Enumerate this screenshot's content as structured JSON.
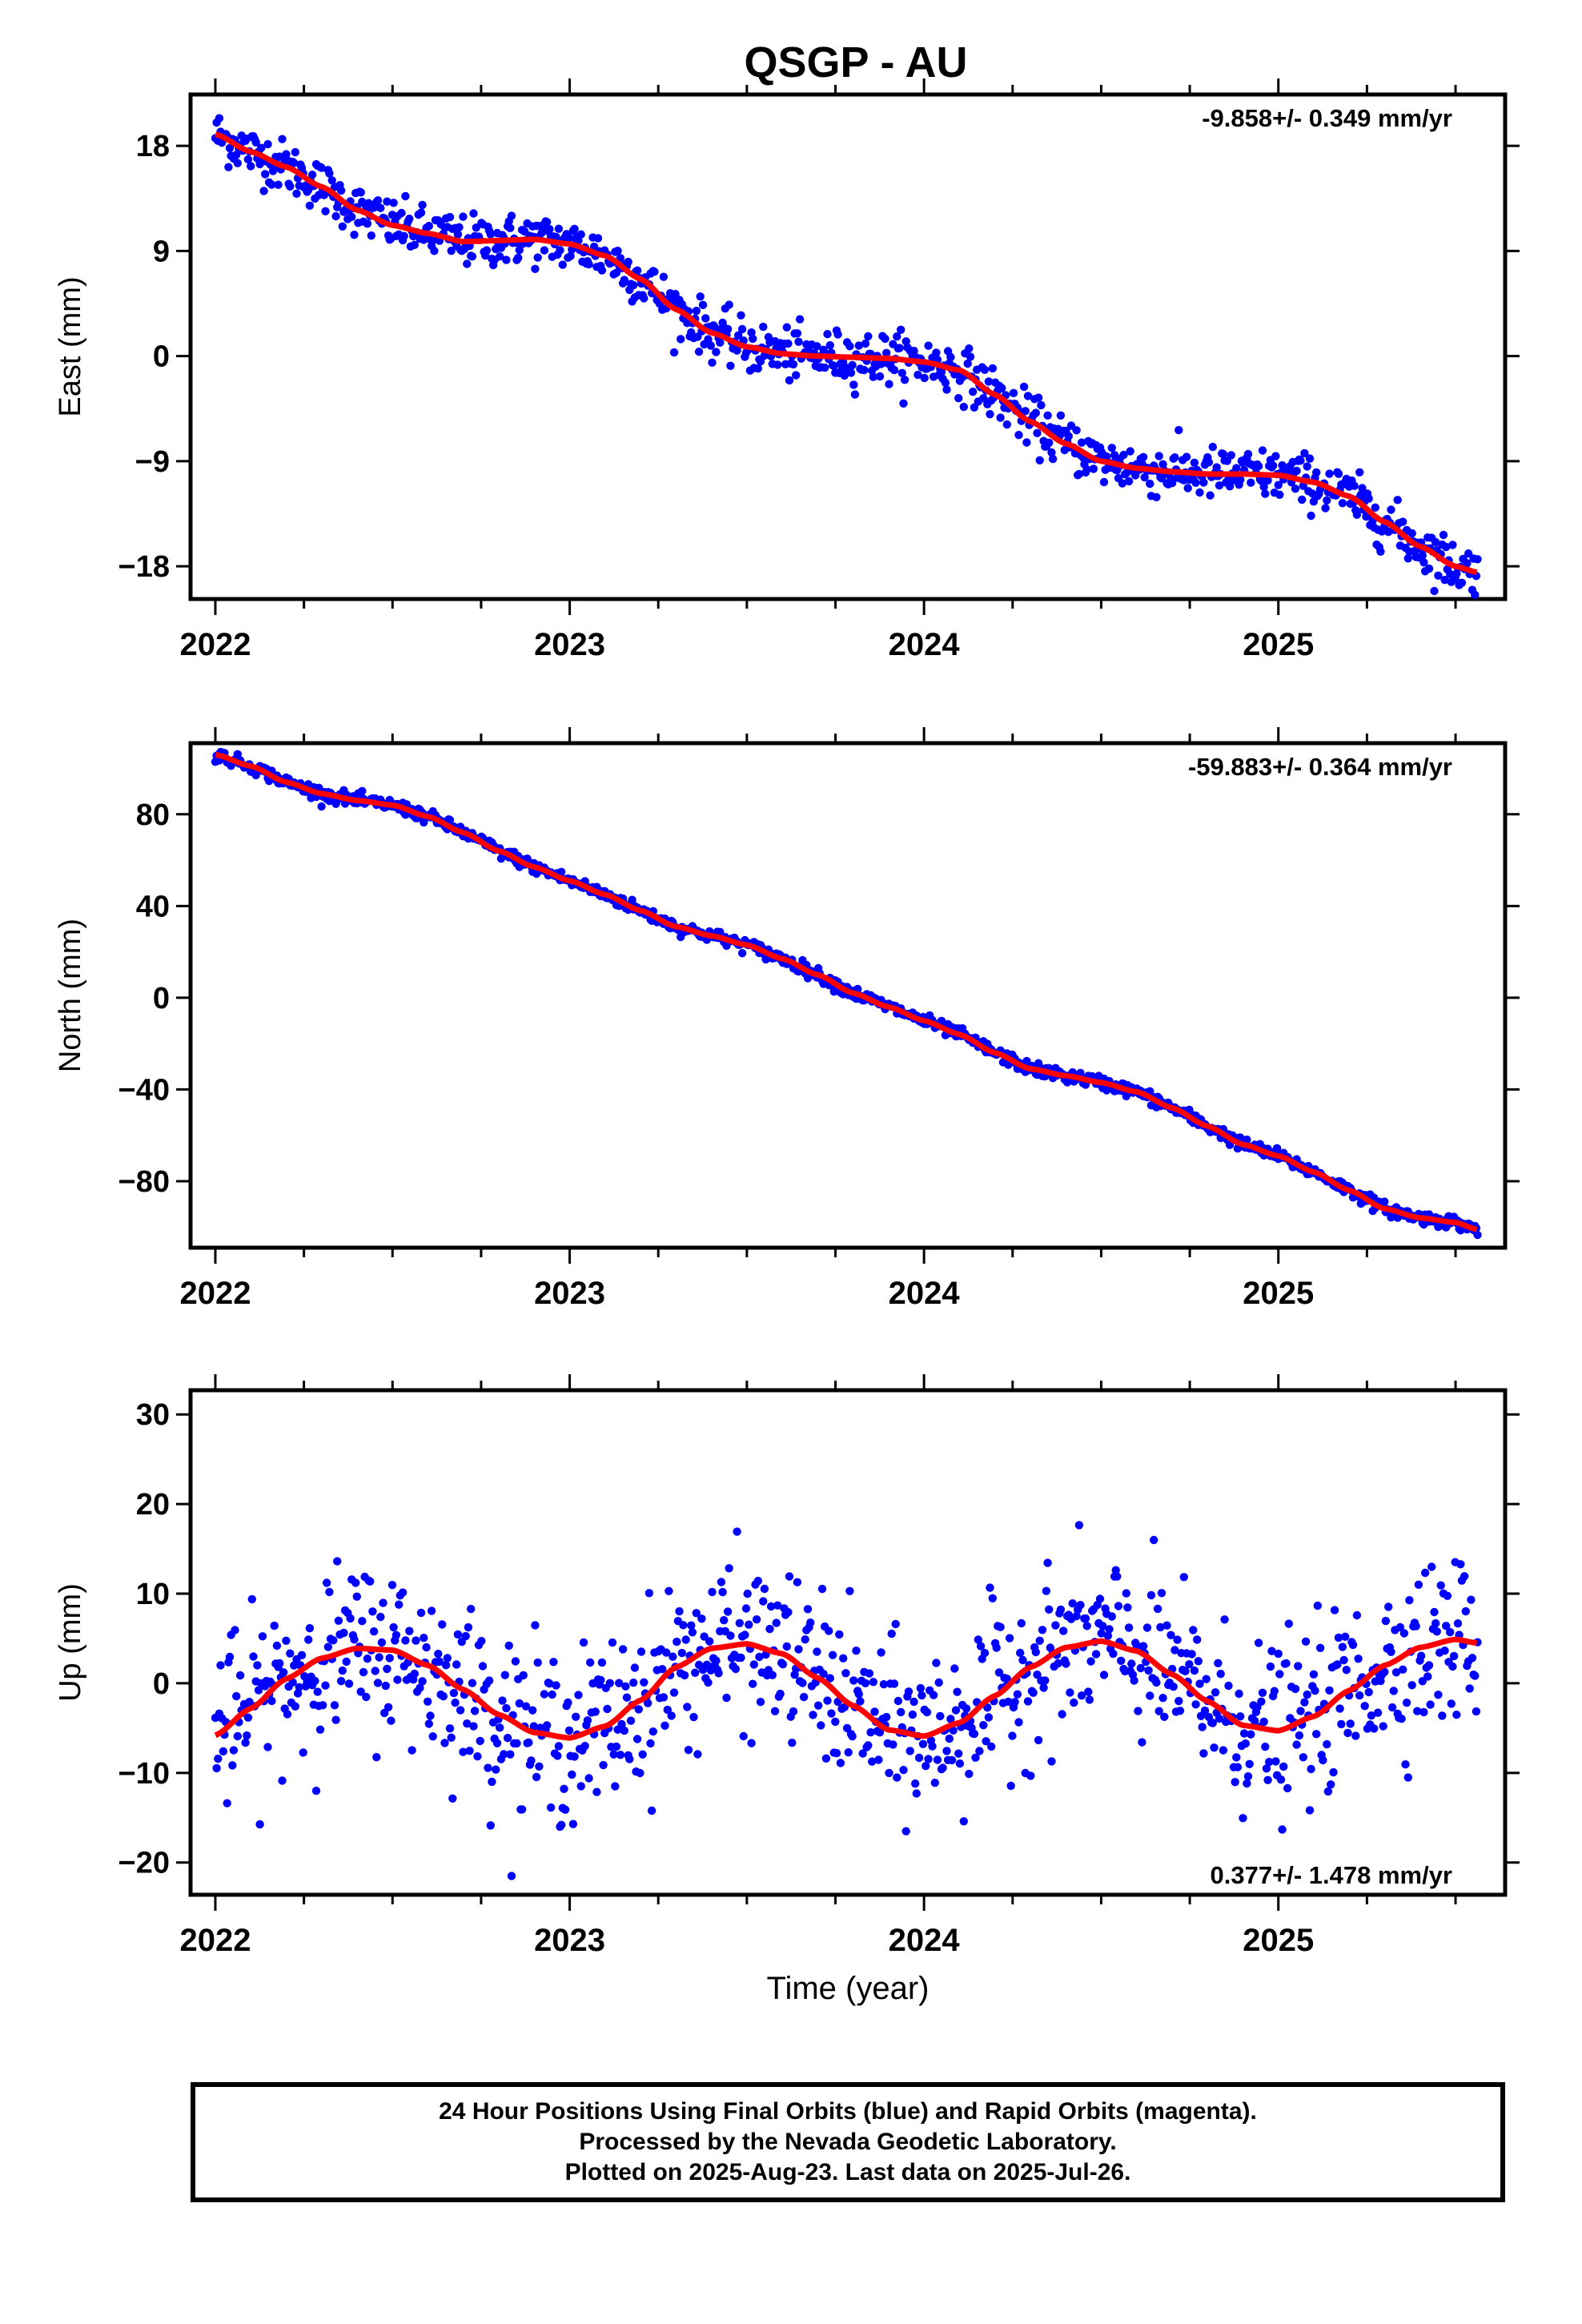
{
  "chart_data": [
    {
      "type": "scatter",
      "title": "QSGP - AU",
      "ylabel": "East (mm)",
      "xlabel": "",
      "xlim": [
        2021.93,
        2025.64
      ],
      "ylim": [
        -20.8,
        22.4
      ],
      "yticks": [
        18,
        9,
        0,
        -9,
        -18
      ],
      "xticks": [
        2022,
        2023,
        2024,
        2025
      ],
      "rate_text": "-9.858+/- 0.349 mm/yr",
      "rate_position": "top-right",
      "series": [
        {
          "color": "#0000ff",
          "style": "points",
          "x": [
            2022.0,
            2022.1,
            2022.2,
            2022.3,
            2022.4,
            2022.5,
            2022.6,
            2022.7,
            2022.8,
            2022.9,
            2023.0,
            2023.1,
            2023.2,
            2023.3,
            2023.4,
            2023.5,
            2023.6,
            2023.7,
            2023.8,
            2023.9,
            2024.0,
            2024.1,
            2024.2,
            2024.3,
            2024.4,
            2024.5,
            2024.6,
            2024.7,
            2024.8,
            2024.9,
            2025.0,
            2025.1,
            2025.2,
            2025.3,
            2025.4,
            2025.5,
            2025.56
          ],
          "y": [
            19.0,
            17.5,
            16.2,
            14.5,
            12.5,
            11.2,
            10.5,
            9.8,
            9.9,
            10.0,
            9.6,
            8.6,
            6.6,
            4.0,
            2.0,
            0.8,
            0.2,
            0.0,
            -0.1,
            -0.2,
            -0.5,
            -1.2,
            -3.3,
            -5.6,
            -7.5,
            -9.0,
            -9.6,
            -9.9,
            -10.1,
            -10.1,
            -10.2,
            -10.8,
            -12.0,
            -14.2,
            -16.3,
            -18.0,
            -18.5
          ]
        },
        {
          "color": "#ff0000",
          "style": "line",
          "x": [
            2022.0,
            2022.1,
            2022.2,
            2022.3,
            2022.4,
            2022.5,
            2022.6,
            2022.7,
            2022.8,
            2022.9,
            2023.0,
            2023.1,
            2023.2,
            2023.3,
            2023.4,
            2023.5,
            2023.6,
            2023.7,
            2023.8,
            2023.9,
            2024.0,
            2024.1,
            2024.2,
            2024.3,
            2024.4,
            2024.5,
            2024.6,
            2024.7,
            2024.8,
            2024.9,
            2025.0,
            2025.1,
            2025.2,
            2025.3,
            2025.4,
            2025.5,
            2025.56
          ],
          "y": [
            19.0,
            17.5,
            16.2,
            14.5,
            12.5,
            11.2,
            10.5,
            9.8,
            9.9,
            10.0,
            9.6,
            8.6,
            6.6,
            4.0,
            2.0,
            0.8,
            0.2,
            0.0,
            -0.1,
            -0.2,
            -0.5,
            -1.2,
            -3.3,
            -5.6,
            -7.5,
            -9.0,
            -9.6,
            -9.9,
            -10.1,
            -10.1,
            -10.2,
            -10.8,
            -12.0,
            -14.2,
            -16.3,
            -18.0,
            -18.5
          ]
        }
      ]
    },
    {
      "type": "scatter",
      "title": "",
      "ylabel": "North (mm)",
      "xlabel": "",
      "xlim": [
        2021.93,
        2025.64
      ],
      "ylim": [
        -109,
        111
      ],
      "yticks": [
        80,
        40,
        0,
        -40,
        -80
      ],
      "xticks": [
        2022,
        2023,
        2024,
        2025
      ],
      "rate_text": "-59.883+/- 0.364 mm/yr",
      "rate_position": "top-right",
      "series": [
        {
          "color": "#0000ff",
          "style": "points",
          "x": [
            2022.0,
            2022.1,
            2022.2,
            2022.3,
            2022.4,
            2022.5,
            2022.6,
            2022.7,
            2022.8,
            2022.9,
            2023.0,
            2023.1,
            2023.2,
            2023.3,
            2023.4,
            2023.5,
            2023.6,
            2023.7,
            2023.8,
            2023.9,
            2024.0,
            2024.1,
            2024.2,
            2024.3,
            2024.4,
            2024.5,
            2024.6,
            2024.7,
            2024.8,
            2024.9,
            2025.0,
            2025.1,
            2025.2,
            2025.3,
            2025.4,
            2025.5,
            2025.56
          ],
          "y": [
            106,
            101,
            94,
            89,
            86,
            84,
            79,
            72,
            64,
            57,
            51,
            45,
            38,
            31,
            27,
            23,
            17,
            10,
            2,
            -4,
            -10,
            -16,
            -24,
            -31,
            -34,
            -37,
            -41,
            -48,
            -56,
            -64,
            -69,
            -76,
            -84,
            -92,
            -96,
            -98,
            -101
          ]
        },
        {
          "color": "#ff0000",
          "style": "line",
          "x": [
            2022.0,
            2022.1,
            2022.2,
            2022.3,
            2022.4,
            2022.5,
            2022.6,
            2022.7,
            2022.8,
            2022.9,
            2023.0,
            2023.1,
            2023.2,
            2023.3,
            2023.4,
            2023.5,
            2023.6,
            2023.7,
            2023.8,
            2023.9,
            2024.0,
            2024.1,
            2024.2,
            2024.3,
            2024.4,
            2024.5,
            2024.6,
            2024.7,
            2024.8,
            2024.9,
            2025.0,
            2025.1,
            2025.2,
            2025.3,
            2025.4,
            2025.5,
            2025.56
          ],
          "y": [
            106,
            101,
            94,
            89,
            86,
            84,
            79,
            72,
            64,
            57,
            51,
            45,
            38,
            31,
            27,
            23,
            17,
            10,
            2,
            -4,
            -10,
            -16,
            -24,
            -31,
            -34,
            -37,
            -41,
            -48,
            -56,
            -64,
            -69,
            -76,
            -84,
            -92,
            -96,
            -98,
            -101
          ]
        }
      ]
    },
    {
      "type": "scatter",
      "title": "",
      "ylabel": "Up (mm)",
      "xlabel": "Time (year)",
      "xlim": [
        2021.93,
        2025.64
      ],
      "ylim": [
        -23.6,
        32.7
      ],
      "yticks": [
        30,
        20,
        10,
        0,
        -10,
        -20
      ],
      "xticks": [
        2022,
        2023,
        2024,
        2025
      ],
      "rate_text": "0.377+/- 1.478 mm/yr",
      "rate_position": "bottom-right",
      "series": [
        {
          "color": "#0000ff",
          "style": "points",
          "x": [
            2022.0,
            2022.1,
            2022.2,
            2022.3,
            2022.4,
            2022.5,
            2022.6,
            2022.7,
            2022.8,
            2022.9,
            2023.0,
            2023.1,
            2023.2,
            2023.3,
            2023.4,
            2023.5,
            2023.6,
            2023.7,
            2023.8,
            2023.9,
            2024.0,
            2024.1,
            2024.2,
            2024.3,
            2024.4,
            2024.5,
            2024.6,
            2024.7,
            2024.8,
            2024.9,
            2025.0,
            2025.1,
            2025.2,
            2025.3,
            2025.4,
            2025.5,
            2025.56
          ],
          "y": [
            -5.8,
            -2.8,
            0.5,
            2.8,
            3.9,
            3.7,
            2.0,
            -0.7,
            -3.5,
            -5.5,
            -6.1,
            -4.8,
            -1.9,
            1.8,
            3.9,
            4.4,
            3.3,
            0.6,
            -2.5,
            -5.2,
            -5.9,
            -4.4,
            -1.4,
            1.8,
            4.0,
            4.7,
            3.6,
            1.0,
            -2.0,
            -4.7,
            -5.3,
            -3.7,
            -0.8,
            2.0,
            4.0,
            4.9,
            4.5
          ]
        },
        {
          "color": "#ff0000",
          "style": "line",
          "x": [
            2022.0,
            2022.1,
            2022.2,
            2022.3,
            2022.4,
            2022.5,
            2022.6,
            2022.7,
            2022.8,
            2022.9,
            2023.0,
            2023.1,
            2023.2,
            2023.3,
            2023.4,
            2023.5,
            2023.6,
            2023.7,
            2023.8,
            2023.9,
            2024.0,
            2024.1,
            2024.2,
            2024.3,
            2024.4,
            2024.5,
            2024.6,
            2024.7,
            2024.8,
            2024.9,
            2025.0,
            2025.1,
            2025.2,
            2025.3,
            2025.4,
            2025.5,
            2025.56
          ],
          "y": [
            -5.8,
            -2.8,
            0.5,
            2.8,
            3.9,
            3.7,
            2.0,
            -0.7,
            -3.5,
            -5.5,
            -6.1,
            -4.8,
            -1.9,
            1.8,
            3.9,
            4.4,
            3.3,
            0.6,
            -2.5,
            -5.2,
            -5.9,
            -4.4,
            -1.4,
            1.8,
            4.0,
            4.7,
            3.6,
            1.0,
            -2.0,
            -4.7,
            -5.3,
            -3.7,
            -0.8,
            2.0,
            4.0,
            4.9,
            4.5
          ]
        }
      ]
    }
  ],
  "footer": {
    "line1": "24 Hour Positions Using Final Orbits (blue) and Rapid Orbits (magenta).",
    "line2": "Processed by the Nevada Geodetic Laboratory.",
    "line3": "Plotted on 2025-Aug-23. Last data on 2025-Jul-26."
  }
}
